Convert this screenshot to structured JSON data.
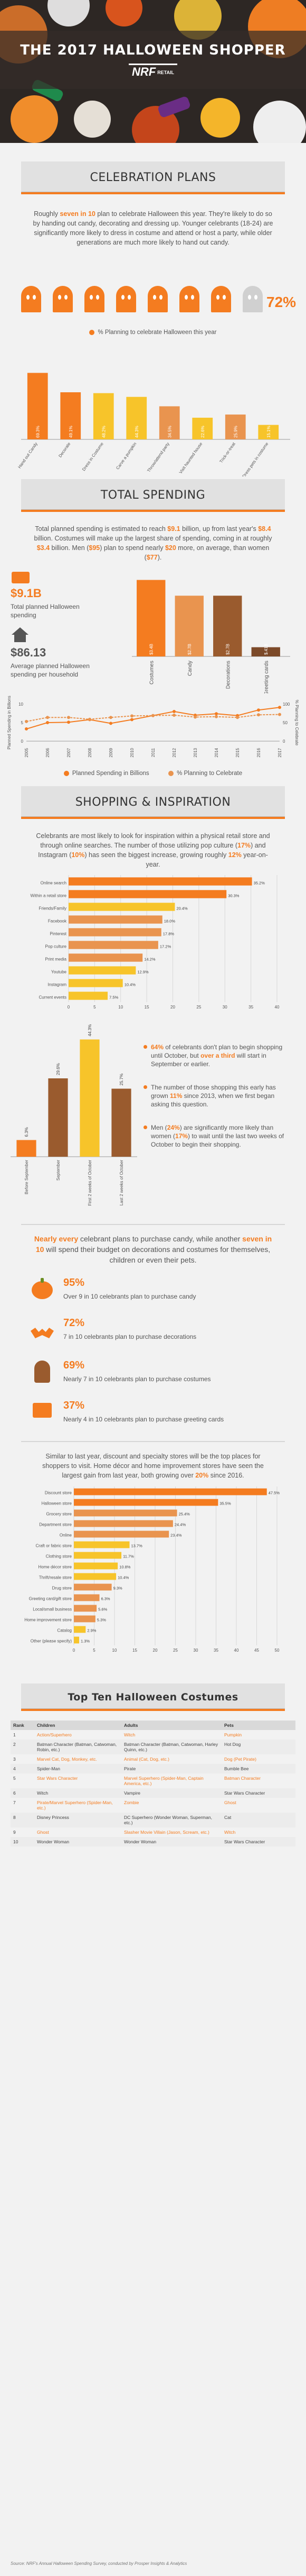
{
  "hero": {
    "title": "THE 2017 HALLOWEEN SHOPPER",
    "logo": "NRF",
    "logo_sub": "RETAIL"
  },
  "celebration": {
    "title": "CELEBRATION PLANS",
    "p1": "Roughly ",
    "p1_hl": "seven in 10",
    "p1_rest": " plan to celebrate Halloween this year. They're likely to do so by handing out candy, decorating and dressing up. Younger celebrants (18-24) are significantly more likely to dress in costume and attend or host a party, while older generations are much more likely to hand out candy.",
    "pct": "72%",
    "legend": "% Planning to celebrate Halloween this year",
    "chart_data": {
      "type": "bar",
      "categories": [
        "Hand out Candy",
        "Decorate",
        "Dress in Costume",
        "Carve a pumpkin",
        "Throw/attend party",
        "Visit haunted house",
        "Trick-or-treat",
        "Dress pets in costume"
      ],
      "values": [
        69.3,
        49.1,
        48.2,
        44.3,
        34.5,
        22.6,
        25.9,
        15.1
      ],
      "ylim": [
        0,
        80
      ]
    }
  },
  "spending": {
    "title": "TOTAL SPENDING",
    "p1": "Total planned spending is estimated to reach ",
    "p1_hl1": "$9.1",
    "p1_m1": " billion, up from last year's ",
    "p1_hl2": "$8.4",
    "p1_m2": " billion. Costumes will make up the largest share of spending, coming in at roughly ",
    "p1_hl3": "$3.4",
    "p1_m3": " billion. Men (",
    "p1_hl4": "$95",
    "p1_m4": ") plan to spend nearly ",
    "p1_hl5": "$20",
    "p1_m5": " more, on average, than women (",
    "p1_hl6": "$77",
    "p1_m6": ").",
    "total_val": "$9.1B",
    "total_label": "Total planned Halloween spending",
    "avg_val": "$86.13",
    "avg_label": "Average planned Halloween spending per household",
    "chart_data": {
      "type": "bar",
      "categories": [
        "Costumes",
        "Candy",
        "Decorations",
        "Greeting cards"
      ],
      "values": [
        3.4,
        2.7,
        2.7,
        0.41
      ],
      "value_labels": [
        "$3.4B",
        "$2.7B",
        "$2.7B",
        "$.41B"
      ],
      "ylim": [
        0,
        4
      ]
    }
  },
  "trend": {
    "y_left_label": "Planned Spending in Billions",
    "y_right_label": "% Planning to Celebrate",
    "legend_a": "Planned Spending in Billions",
    "legend_b": "% Planning to Celebrate",
    "chart_data": {
      "type": "line",
      "x": [
        "2005",
        "2006",
        "2007",
        "2008",
        "2009",
        "2010",
        "2011",
        "2012",
        "2013",
        "2014",
        "2015",
        "2016",
        "2017"
      ],
      "series": [
        {
          "name": "Planned Spending in Billions",
          "values": [
            3.3,
            5.0,
            5.1,
            5.8,
            4.8,
            5.8,
            6.9,
            8.0,
            7.0,
            7.4,
            6.9,
            8.4,
            9.1
          ]
        },
        {
          "name": "% Planning to Celebrate",
          "values": [
            53,
            64,
            64,
            59,
            64,
            68,
            69,
            70,
            65,
            66,
            64,
            71,
            72
          ]
        }
      ],
      "ylim_left": [
        0,
        10
      ],
      "ylim_right": [
        0,
        100
      ]
    }
  },
  "shopping": {
    "title": "SHOPPING & INSPIRATION",
    "p1": "Celebrants are most likely to look for inspiration within a physical retail store and through online searches. The number of those utilizing pop culture (",
    "p1_hl1": "17%",
    "p1_m1": ") and Instagram (",
    "p1_hl2": "10%",
    "p1_m2": ") has seen the biggest increase, growing roughly ",
    "p1_hl3": "12%",
    "p1_m3": " year-on-year.",
    "chart_data": {
      "type": "bar",
      "orientation": "horizontal",
      "categories": [
        "Online search",
        "Within a retail store",
        "Friends/Family",
        "Facebook",
        "Pinterest",
        "Pop culture",
        "Print media",
        "Youtube",
        "Instagram",
        "Current events"
      ],
      "values": [
        35.2,
        30.3,
        20.4,
        18.0,
        17.8,
        17.2,
        14.2,
        12.9,
        10.4,
        7.5
      ],
      "value_labels": [
        "35.2%",
        "30.3%",
        "20.4%",
        "18.0%",
        "17.8%",
        "17.2%",
        "14.2%",
        "12.9%",
        "10.4%",
        "7.5%"
      ],
      "xticks": [
        "0",
        "5",
        "10",
        "15",
        "20",
        "25",
        "30",
        "35",
        "40"
      ],
      "xlim": [
        0,
        40
      ]
    }
  },
  "timing": {
    "chart_data": {
      "type": "bar",
      "categories": [
        "Before September",
        "September",
        "First 2 weeks of October",
        "Last 2 weeks of October"
      ],
      "values": [
        6.3,
        29.6,
        44.3,
        25.7
      ],
      "value_labels": [
        "6.3%",
        "29.6%",
        "44.3%",
        "25.7%"
      ],
      "ylim": [
        0,
        50
      ]
    },
    "b1_a": "64%",
    "b1_b": " of celebrants don't plan to begin shopping until October, but ",
    "b1_c": "over a third",
    "b1_d": " will start in September or earlier.",
    "b2_a": "The number of those shopping this early has grown ",
    "b2_b": "11%",
    "b2_c": " since 2013, when we first began asking this question.",
    "b3_a": "Men (",
    "b3_b": "24%",
    "b3_c": ") are significantly more likely than women (",
    "b3_d": "17%",
    "b3_e": ") to wait until the last two weeks of October to begin their shopping."
  },
  "seven": {
    "hl1": "Nearly every",
    "t1": " celebrant plans to purchase candy, while another ",
    "hl2": "seven in 10",
    "t2": " will spend their budget on decorations and costumes for themselves, children or even their pets.",
    "rows": [
      {
        "pct": "95%",
        "desc": "Over 9 in 10 celebrants plan to purchase candy"
      },
      {
        "pct": "72%",
        "desc": "7 in 10 celebrants plan to purchase decorations"
      },
      {
        "pct": "69%",
        "desc": "Nearly 7 in 10 celebrants plan to purchase costumes"
      },
      {
        "pct": "37%",
        "desc": "Nearly 4 in 10 celebrants plan to purchase greeting cards"
      }
    ]
  },
  "stores": {
    "p1": "Similar to last year, discount and specialty stores will be the top places for shoppers to visit. Home décor and home improvement stores have seen the largest gain from last year, both growing over ",
    "p1_hl": "20%",
    "p1_m": " since 2016.",
    "chart_data": {
      "type": "bar",
      "orientation": "horizontal",
      "categories": [
        "Discount store",
        "Halloween store",
        "Grocery store",
        "Department store",
        "Online",
        "Craft or fabric store",
        "Clothing store",
        "Home décor store",
        "Thrift/resale store",
        "Drug store",
        "Greeting card/gift store",
        "Local/small business",
        "Home improvement store",
        "Catalog",
        "Other (please specify)"
      ],
      "values": [
        47.5,
        35.5,
        25.4,
        24.4,
        23.4,
        13.7,
        11.7,
        10.8,
        10.4,
        9.3,
        6.3,
        5.6,
        5.3,
        2.9,
        1.3
      ],
      "value_labels": [
        "47.5%",
        "35.5%",
        "25.4%",
        "24.4%",
        "23.4%",
        "13.7%",
        "11.7%",
        "10.8%",
        "10.4%",
        "9.3%",
        "6.3%",
        "5.6%",
        "5.3%",
        "2.9%",
        "1.3%"
      ],
      "xticks": [
        "0",
        "5",
        "10",
        "15",
        "20",
        "25",
        "30",
        "35",
        "40",
        "45",
        "50"
      ],
      "xlim": [
        0,
        50
      ]
    }
  },
  "costumes": {
    "title": "Top Ten Halloween Costumes",
    "headers": [
      "Rank",
      "Children",
      "Adults",
      "Pets"
    ],
    "rows": [
      [
        "1",
        "Action/Superhero",
        "Witch",
        "Pumpkin"
      ],
      [
        "2",
        "Batman Character (Batman, Catwoman, Robin, etc.)",
        "Batman Character (Batman, Catwoman, Harley Quinn, etc.)",
        "Hot Dog"
      ],
      [
        "3",
        "Marvel Cat, Dog, Monkey, etc.",
        "Animal (Cat, Dog, etc.)",
        "Dog (Pet Pirate)"
      ],
      [
        "4",
        "Spider-Man",
        "Pirate",
        "Bumble Bee"
      ],
      [
        "5",
        "Star Wars Character",
        "Marvel Superhero (Spider-Man, Captain America, etc.)",
        "Batman Character"
      ],
      [
        "6",
        "Witch",
        "Vampire",
        "Star Wars Character"
      ],
      [
        "7",
        "Pirate/Marvel Superhero (Spider-Man, etc.)",
        "Zombie",
        "Ghost"
      ],
      [
        "8",
        "Disney Princess",
        "DC Superhero (Wonder Woman, Superman, etc.)",
        "Cat"
      ],
      [
        "9",
        "Ghost",
        "Slasher Movie Villain (Jason, Scream, etc.)",
        "Witch"
      ],
      [
        "10",
        "Wonder Woman",
        "Wonder Woman",
        "Star Wars Character"
      ]
    ],
    "source": "Source: NRF's Annual Halloween Spending Survey, conducted by Prosper Insights & Analytics"
  },
  "colors": {
    "orange": "#f47c20",
    "yellow": "#f7c42a",
    "brown": "#9a5b2e",
    "peach": "#e9944f",
    "gray": "#d0d0d0"
  }
}
